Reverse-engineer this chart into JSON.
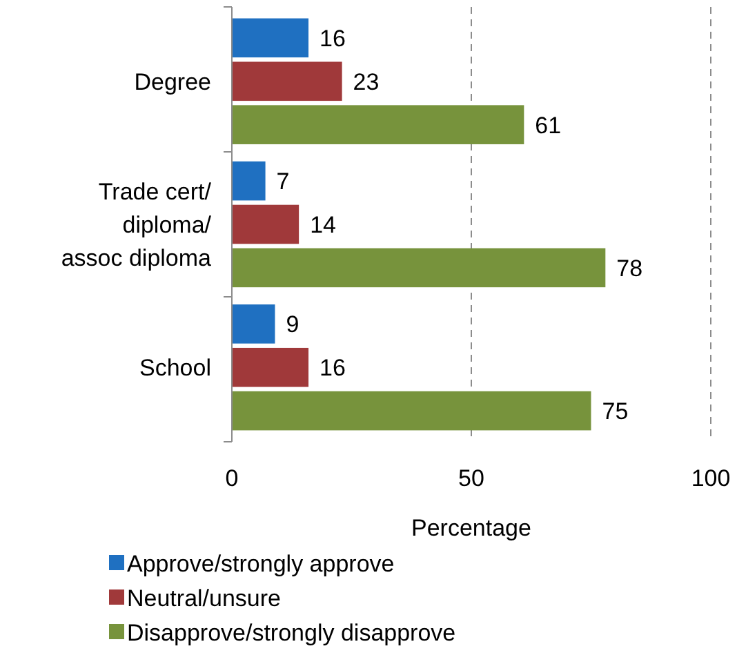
{
  "chart_data": {
    "type": "bar",
    "orientation": "horizontal",
    "xlabel": "Percentage",
    "categories": [
      "Degree",
      "Trade cert/\ndiploma/\nassoc diploma",
      "School"
    ],
    "series": [
      {
        "name": "Approve/strongly approve",
        "color": "#1f70c1",
        "values": [
          16,
          7,
          9
        ]
      },
      {
        "name": "Neutral/unsure",
        "color": "#a0393a",
        "values": [
          23,
          14,
          16
        ]
      },
      {
        "name": "Disapprove/strongly disapprove",
        "color": "#77933c",
        "values": [
          61,
          78,
          75
        ]
      }
    ],
    "xlim": [
      0,
      100
    ],
    "xticks": [
      0,
      50,
      100
    ],
    "grid": "x",
    "legend": "bottom",
    "data_labels": true
  }
}
